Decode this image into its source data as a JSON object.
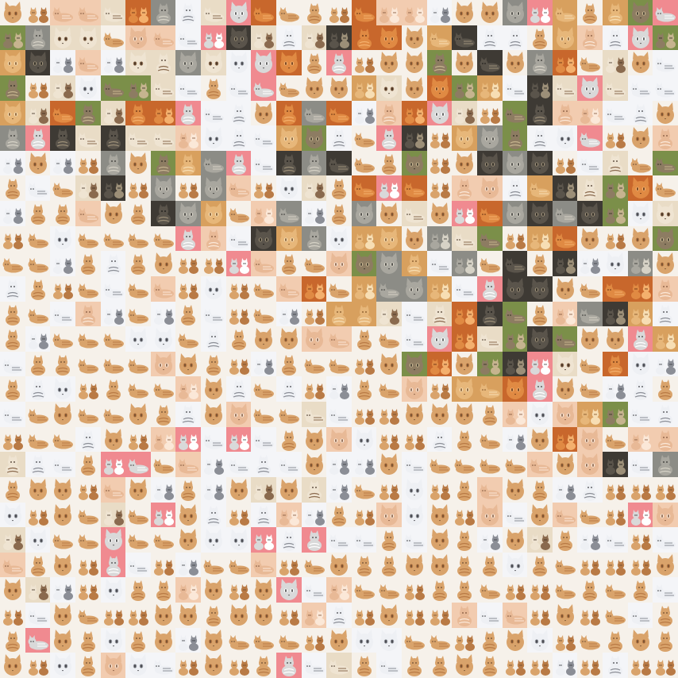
{
  "image": {
    "kind": "photo-mosaic",
    "subject": "cat",
    "grid": {
      "columns": 27,
      "rows": 27
    },
    "tile_themes": [
      {
        "name": "orange-tabby-on-white",
        "bg": "#f6f1ea",
        "cat": "#d9a36b",
        "accent": "#b97a45",
        "dark": "#6b4a2f"
      },
      {
        "name": "white-grey-cat-on-white",
        "bg": "#f4f5f8",
        "cat": "#eef0f4",
        "accent": "#8b8e96",
        "dark": "#3a3b40"
      },
      {
        "name": "cat-on-pink-blanket",
        "bg": "#f08a90",
        "cat": "#d9d9d9",
        "accent": "#ffffff",
        "dark": "#3c3c3c"
      },
      {
        "name": "grey-tabby-closeup",
        "bg": "#8c8c86",
        "cat": "#a9a79f",
        "accent": "#d6d2c6",
        "dark": "#2f2f2d"
      },
      {
        "name": "dark-cat-indoor",
        "bg": "#3e3a34",
        "cat": "#5a544b",
        "accent": "#9c8f78",
        "dark": "#151412"
      },
      {
        "name": "ginger-cat-warm-light",
        "bg": "#d8a05e",
        "cat": "#e7b77a",
        "accent": "#f7deb4",
        "dark": "#7a4d22"
      },
      {
        "name": "cat-in-grass",
        "bg": "#7b8f49",
        "cat": "#8d7c62",
        "accent": "#c6b48f",
        "dark": "#2e2b22"
      },
      {
        "name": "siamese-beige",
        "bg": "#e9dcc6",
        "cat": "#efe4d2",
        "accent": "#8a6a4e",
        "dark": "#3d2c1f"
      },
      {
        "name": "pumpkin-orange",
        "bg": "#c8672c",
        "cat": "#e08a43",
        "accent": "#f4b06d",
        "dark": "#5a2b10"
      },
      {
        "name": "peach-pastel",
        "bg": "#f2ccb0",
        "cat": "#e8b996",
        "accent": "#fbe8d8",
        "dark": "#7c5238"
      }
    ]
  }
}
